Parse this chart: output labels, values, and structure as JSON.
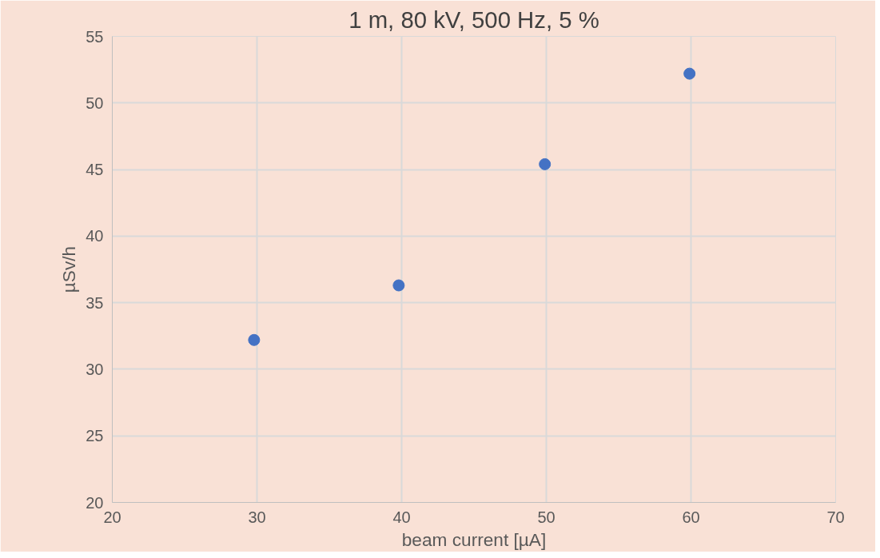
{
  "chart_data": {
    "type": "scatter",
    "title": "1 m, 80 kV, 500 Hz, 5 %",
    "xlabel": "beam current [µA]",
    "ylabel": "µSv/h",
    "x": [
      29.8,
      39.8,
      49.9,
      59.9
    ],
    "series": [
      {
        "color": "#4472c4",
        "values": [
          32.2,
          36.3,
          45.4,
          52.2
        ]
      }
    ],
    "xlim": [
      20,
      70
    ],
    "xticks": [
      20,
      30,
      40,
      50,
      60,
      70
    ],
    "ylim": [
      20,
      55
    ],
    "yticks": [
      20,
      25,
      30,
      35,
      40,
      45,
      50,
      55
    ],
    "grid": true,
    "marker": "circle"
  }
}
